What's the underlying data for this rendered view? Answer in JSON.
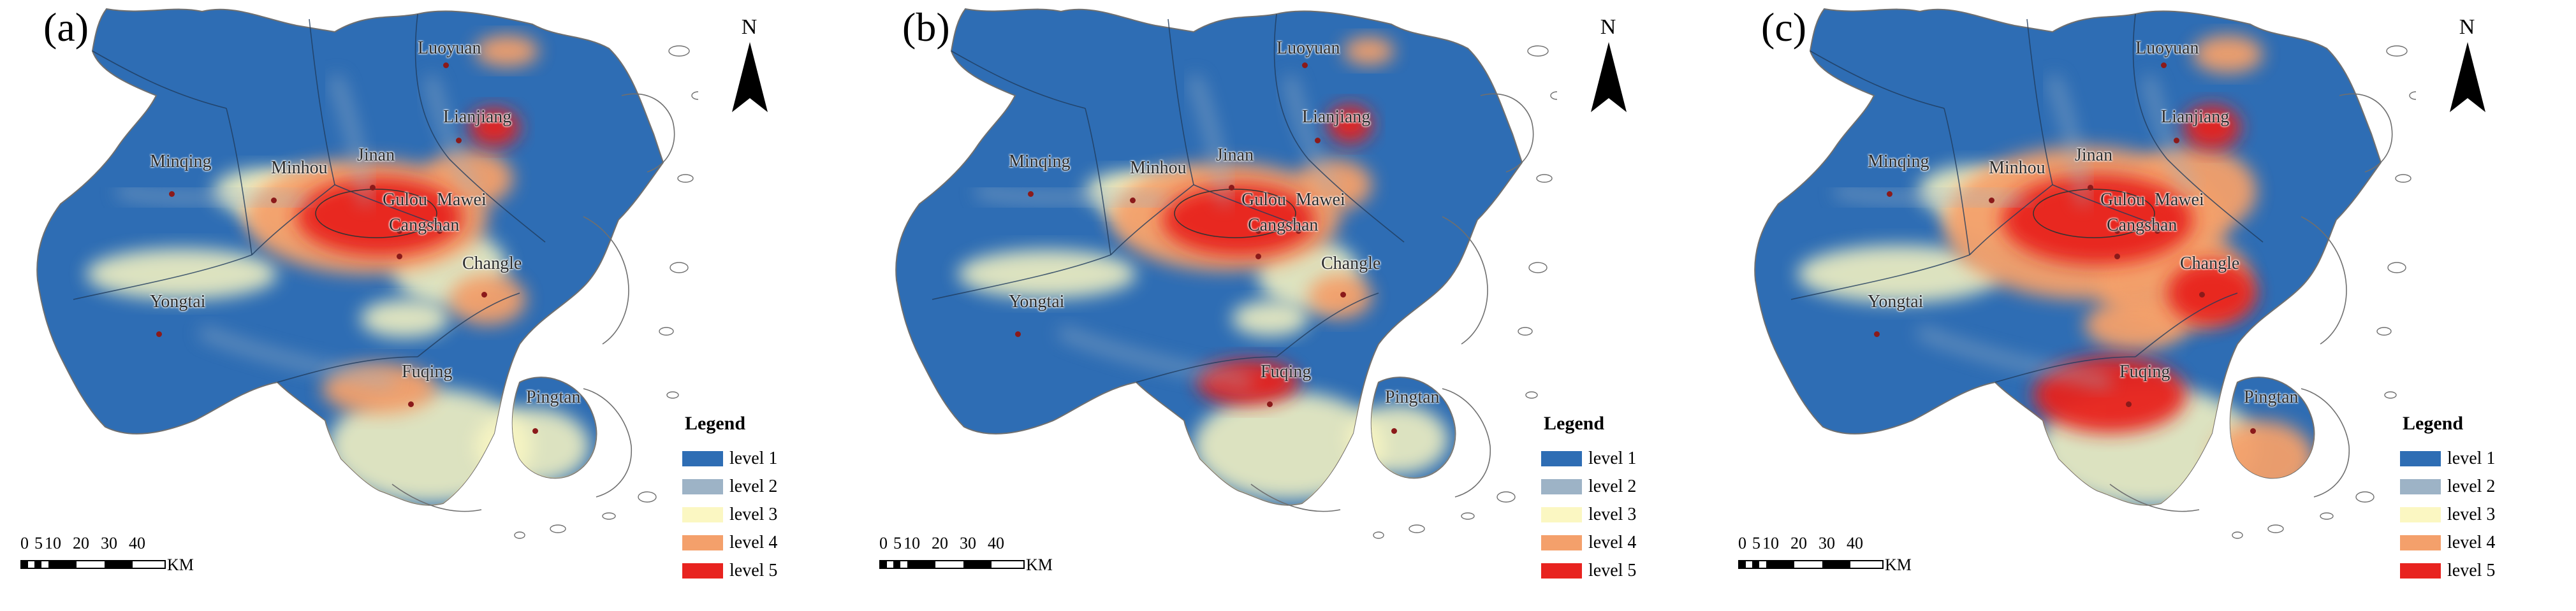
{
  "panels": [
    {
      "label": "(a)",
      "variant": 0
    },
    {
      "label": "(b)",
      "variant": 1
    },
    {
      "label": "(c)",
      "variant": 2
    }
  ],
  "north_arrow": {
    "letter": "N"
  },
  "legend": {
    "title": "Legend",
    "items": [
      {
        "label": "level 1",
        "color": "#2e6db4"
      },
      {
        "label": "level 2",
        "color": "#9db3c6"
      },
      {
        "label": "level 3",
        "color": "#fbf7c2"
      },
      {
        "label": "level 4",
        "color": "#f4a06b"
      },
      {
        "label": "level 5",
        "color": "#e8231f"
      }
    ]
  },
  "scale_bar": {
    "ticks": [
      "0",
      "5",
      "10",
      "20",
      "30",
      "40"
    ],
    "unit": "KM"
  },
  "place_names": [
    "Luoyuan",
    "Lianjiang",
    "Minqing",
    "Minhou",
    "Jinan",
    "Gulou",
    "Mawei",
    "Cangshan",
    "Changle",
    "Yongtai",
    "Fuqing",
    "Pingtan"
  ],
  "colors": {
    "land_blue": "#2e6db4",
    "boundary": "#1f3b5c",
    "coast": "#6f6f6f"
  }
}
